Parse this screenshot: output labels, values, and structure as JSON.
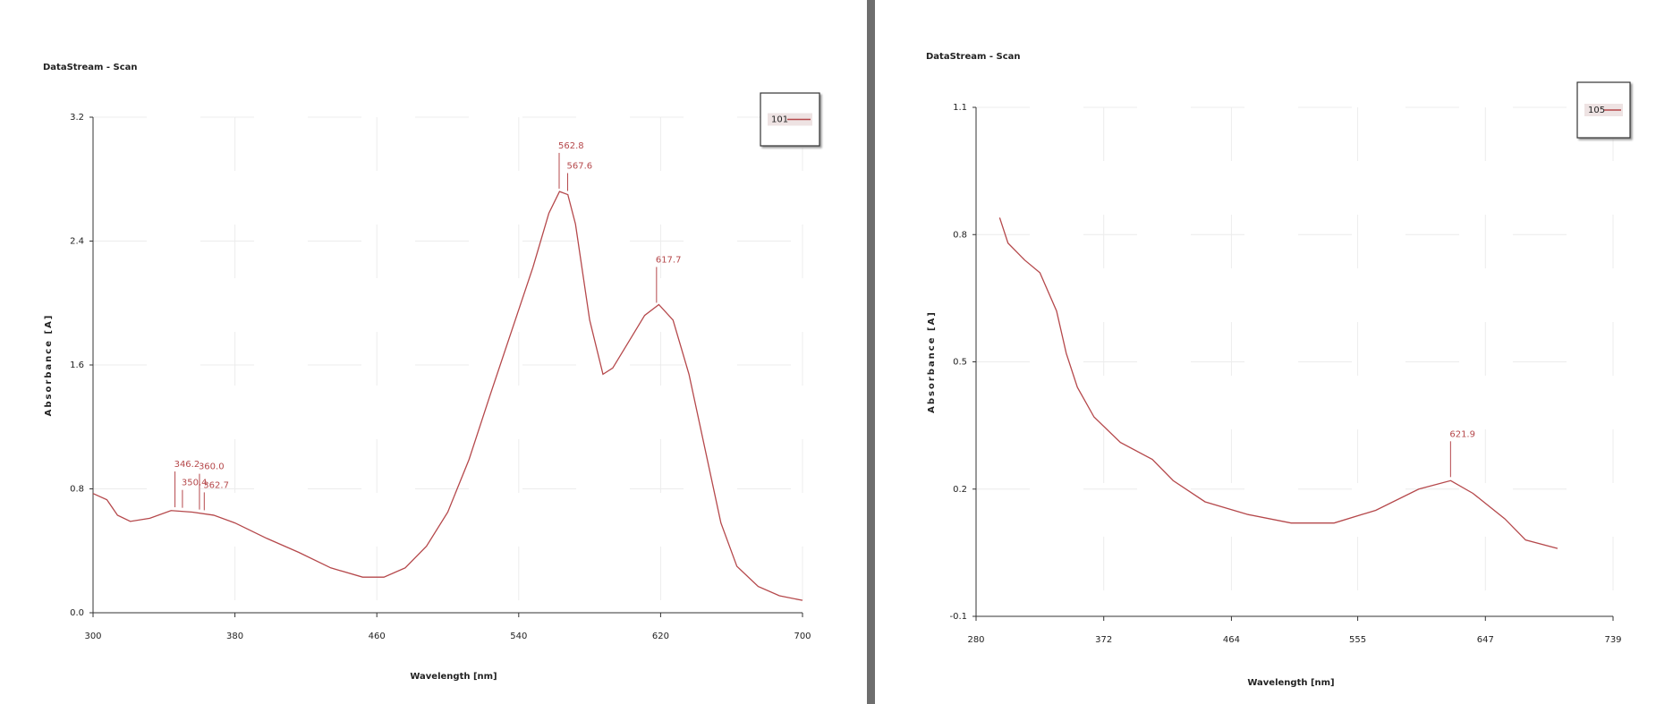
{
  "chart_data": [
    {
      "type": "line",
      "title": "DataStream - Scan",
      "xlabel": "Wavelength [nm]",
      "ylabel": "Absorbance [A]",
      "x": [
        300,
        307.8,
        313.8,
        321,
        332,
        344,
        356,
        368,
        380,
        398,
        416,
        434,
        452,
        464,
        476,
        488,
        500,
        512,
        524,
        536,
        548,
        557,
        563,
        567.7,
        572,
        580,
        587.5,
        593,
        602,
        611,
        619,
        627,
        636,
        645,
        654,
        663,
        675,
        687,
        700
      ],
      "series": [
        {
          "name": "101",
          "color": "#b5484b",
          "values": [
            0.77,
            0.73,
            0.63,
            0.59,
            0.61,
            0.66,
            0.65,
            0.63,
            0.58,
            0.48,
            0.39,
            0.29,
            0.23,
            0.23,
            0.29,
            0.43,
            0.65,
            0.99,
            1.41,
            1.82,
            2.23,
            2.58,
            2.72,
            2.7,
            2.51,
            1.89,
            1.54,
            1.58,
            1.75,
            1.92,
            1.99,
            1.89,
            1.54,
            1.06,
            0.58,
            0.3,
            0.17,
            0.11,
            0.08
          ]
        }
      ],
      "xlim": [
        300,
        700
      ],
      "ylim": [
        0,
        3.2
      ],
      "xticks": [
        300,
        380,
        460,
        540,
        620,
        700
      ],
      "yticks": [
        {
          "value": 0,
          "label": "0.0"
        },
        0.8,
        1.6,
        2.4,
        3.2
      ],
      "peaks": [
        346.2,
        350.4,
        {
          "value": 360,
          "label": "360.0"
        },
        362.7,
        562.8,
        567.6,
        617.7
      ],
      "grid": true,
      "legend": "upper right"
    },
    {
      "type": "line",
      "title": "DataStream - Scan",
      "xlabel": "Wavelength [nm]",
      "ylabel": "Absorbance [A]",
      "x": [
        297,
        303,
        315,
        326,
        338,
        345,
        353,
        365,
        384,
        407,
        422,
        445,
        476,
        507,
        538,
        568,
        599,
        622,
        638,
        661,
        676,
        699
      ],
      "series": [
        {
          "name": "105",
          "color": "#b5484b",
          "values": [
            0.84,
            0.78,
            0.74,
            0.71,
            0.62,
            0.52,
            0.44,
            0.37,
            0.31,
            0.27,
            0.22,
            0.17,
            0.14,
            0.12,
            0.12,
            0.15,
            0.2,
            0.22,
            0.19,
            0.13,
            0.08,
            0.06
          ]
        }
      ],
      "xlim": [
        280,
        739
      ],
      "ylim": [
        -0.1,
        1.1
      ],
      "xticks": [
        280,
        372,
        464,
        555,
        647,
        739
      ],
      "yticks": [
        -0.1,
        0.2,
        0.5,
        0.8,
        1.1
      ],
      "peaks": [
        621.9
      ],
      "grid": true,
      "legend": "upper right"
    }
  ]
}
